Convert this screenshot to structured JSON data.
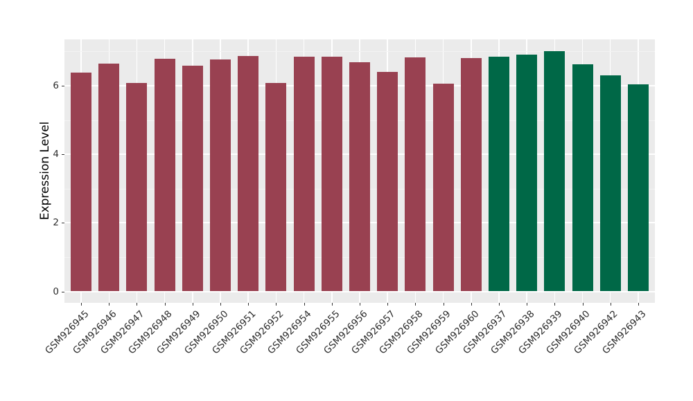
{
  "figure": {
    "background": "#ffffff",
    "panel_background": "#EBEBEB",
    "grid_major_color": "#FFFFFF",
    "grid_minor_color": "#F3F3F3",
    "tick_color": "#333333",
    "axis_text_color": "#2b2b2b",
    "axis_title_color": "#000000"
  },
  "chart_data": {
    "type": "bar",
    "title": "",
    "xlabel": "",
    "ylabel": "Expression Level",
    "categories": [
      "GSM926945",
      "GSM926946",
      "GSM926947",
      "GSM926948",
      "GSM926949",
      "GSM926950",
      "GSM926951",
      "GSM926952",
      "GSM926954",
      "GSM926955",
      "GSM926956",
      "GSM926957",
      "GSM926958",
      "GSM926959",
      "GSM926960",
      "GSM926937",
      "GSM926938",
      "GSM926939",
      "GSM926940",
      "GSM926942",
      "GSM926943"
    ],
    "values": [
      6.39,
      6.64,
      6.07,
      6.79,
      6.59,
      6.77,
      6.86,
      6.07,
      6.85,
      6.85,
      6.68,
      6.41,
      6.83,
      6.06,
      6.81,
      6.84,
      6.9,
      7.01,
      6.62,
      6.31,
      6.03
    ],
    "bar_colors": [
      "#994151",
      "#994151",
      "#994151",
      "#994151",
      "#994151",
      "#994151",
      "#994151",
      "#994151",
      "#994151",
      "#994151",
      "#994151",
      "#994151",
      "#994151",
      "#994151",
      "#994151",
      "#006847",
      "#006847",
      "#006847",
      "#006847",
      "#006847",
      "#006847"
    ],
    "palette": {
      "group_red": "#994151",
      "group_green": "#006847"
    },
    "y_axis": {
      "tick_labels": [
        "0",
        "2",
        "4",
        "6"
      ],
      "ticks_major": [
        0,
        2,
        4,
        6
      ],
      "ticks_minor": [
        1,
        3,
        5,
        7
      ],
      "range": [
        -0.33,
        7.35
      ]
    },
    "legend": null,
    "grid": true,
    "bar_gap_fraction": 0.747
  }
}
